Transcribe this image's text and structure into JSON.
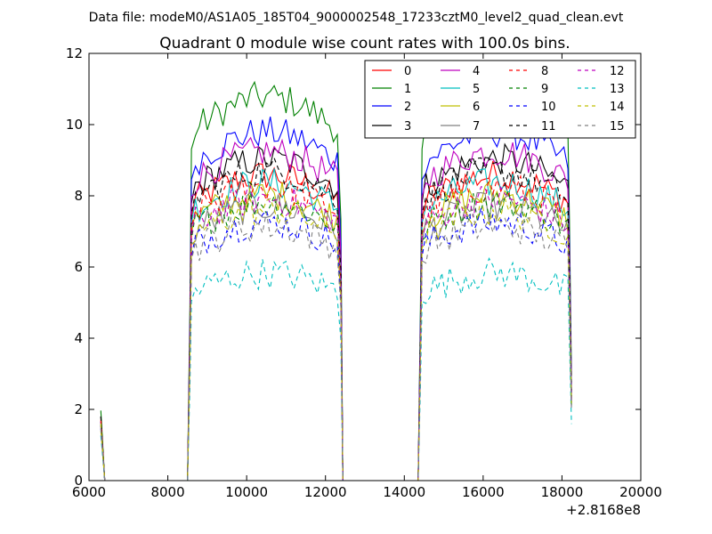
{
  "chart_data": {
    "type": "line",
    "suptitle": "Data file: modeM0/AS1A05_185T04_9000002548_17233cztM0_level2_quad_clean.evt",
    "title": "Quadrant 0 module wise count rates with 100.0s bins.",
    "xlabel": "",
    "ylabel": "",
    "x_offset_label": "+2.8168e8",
    "xlim": [
      6000,
      20000
    ],
    "ylim": [
      0,
      12
    ],
    "xticks": [
      6000,
      8000,
      10000,
      12000,
      14000,
      16000,
      18000,
      20000
    ],
    "yticks": [
      0,
      2,
      4,
      6,
      8,
      10,
      12
    ],
    "grid": false,
    "legend_position": "top-right",
    "legend_columns": 4,
    "segments": [
      {
        "start": 8600,
        "end": 12400
      },
      {
        "start": 14450,
        "end": 18200
      }
    ],
    "series": [
      {
        "name": "0",
        "color": "#ff0000",
        "dash": "solid",
        "level": 7.8
      },
      {
        "name": "1",
        "color": "#008000",
        "dash": "solid",
        "level": 9.8
      },
      {
        "name": "2",
        "color": "#0000ff",
        "dash": "solid",
        "level": 8.9
      },
      {
        "name": "3",
        "color": "#000000",
        "dash": "solid",
        "level": 8.2
      },
      {
        "name": "4",
        "color": "#bf00bf",
        "dash": "solid",
        "level": 8.4
      },
      {
        "name": "5",
        "color": "#00bfbf",
        "dash": "solid",
        "level": 7.6
      },
      {
        "name": "6",
        "color": "#bfbf00",
        "dash": "solid",
        "level": 7.3
      },
      {
        "name": "7",
        "color": "#808080",
        "dash": "solid",
        "level": 7.0
      },
      {
        "name": "8",
        "color": "#ff0000",
        "dash": "dashed",
        "level": 7.5
      },
      {
        "name": "9",
        "color": "#008000",
        "dash": "dashed",
        "level": 7.1
      },
      {
        "name": "10",
        "color": "#0000ff",
        "dash": "dashed",
        "level": 6.6
      },
      {
        "name": "11",
        "color": "#000000",
        "dash": "dashed",
        "level": 7.9
      },
      {
        "name": "12",
        "color": "#bf00bf",
        "dash": "dashed",
        "level": 7.2
      },
      {
        "name": "13",
        "color": "#00bfbf",
        "dash": "dashed",
        "level": 5.3
      },
      {
        "name": "14",
        "color": "#bfbf00",
        "dash": "dashed",
        "level": 6.9
      },
      {
        "name": "15",
        "color": "#808080",
        "dash": "dashed",
        "level": 6.5
      }
    ]
  }
}
